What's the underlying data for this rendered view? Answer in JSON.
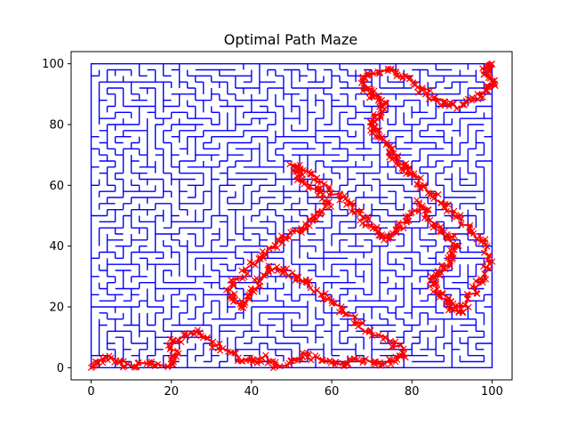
{
  "chart_data": {
    "type": "line",
    "title": "Optimal Path Maze",
    "xlabel": "",
    "ylabel": "",
    "xlim": [
      -5,
      105
    ],
    "ylim": [
      -4,
      104
    ],
    "xticks": [
      0,
      20,
      40,
      60,
      80,
      100
    ],
    "yticks": [
      0,
      20,
      40,
      60,
      80,
      100
    ],
    "grid": false,
    "maze_extent": {
      "x": [
        0,
        100
      ],
      "y": [
        0,
        100
      ]
    },
    "colors": {
      "maze": "#0000ff",
      "path": "#ff0000",
      "axes": "#000000"
    },
    "series": [
      {
        "marker": "x",
        "x": [
          0,
          2,
          5,
          8,
          12,
          16,
          20,
          21,
          20,
          23,
          27,
          30,
          34,
          38,
          40,
          43,
          46,
          50,
          53,
          57,
          60,
          63,
          66,
          70,
          73,
          76,
          78,
          75,
          71,
          67,
          63,
          60,
          57,
          54,
          51,
          48,
          45,
          43,
          41,
          40,
          38,
          36,
          34,
          37,
          40,
          43,
          46,
          49,
          52,
          55,
          57,
          60,
          58,
          55,
          52,
          50,
          53,
          56,
          60,
          63,
          66,
          68,
          70,
          72,
          74,
          76,
          78,
          80,
          82,
          84,
          86,
          88,
          90,
          91,
          90,
          88,
          86,
          85,
          87,
          89,
          90,
          92,
          94,
          96,
          98,
          99,
          98,
          96,
          93,
          90,
          87,
          84,
          82,
          80,
          78,
          76,
          75,
          73,
          71,
          70,
          70,
          72,
          73,
          72,
          70,
          68,
          68,
          70,
          73,
          76,
          79,
          82,
          85,
          88,
          91,
          94,
          97,
          99,
          100,
          99,
          98,
          99,
          100
        ],
        "y": [
          0,
          2,
          3,
          1,
          1,
          1,
          1,
          4,
          8,
          10,
          12,
          8,
          5,
          3,
          2,
          3,
          1,
          2,
          4,
          3,
          2,
          1,
          3,
          2,
          1,
          3,
          5,
          8,
          11,
          14,
          18,
          22,
          25,
          28,
          30,
          32,
          33,
          30,
          27,
          24,
          20,
          22,
          26,
          30,
          34,
          37,
          40,
          43,
          45,
          48,
          51,
          54,
          57,
          60,
          63,
          66,
          65,
          62,
          58,
          55,
          52,
          49,
          46,
          44,
          42,
          45,
          48,
          51,
          54,
          50,
          47,
          44,
          42,
          39,
          36,
          33,
          30,
          27,
          24,
          22,
          20,
          18,
          22,
          26,
          30,
          35,
          40,
          44,
          48,
          52,
          55,
          58,
          61,
          64,
          66,
          68,
          71,
          74,
          77,
          79,
          81,
          83,
          86,
          88,
          90,
          92,
          95,
          97,
          98,
          97,
          95,
          92,
          89,
          87,
          86,
          88,
          90,
          92,
          94,
          96,
          98,
          99,
          100
        ]
      }
    ]
  }
}
